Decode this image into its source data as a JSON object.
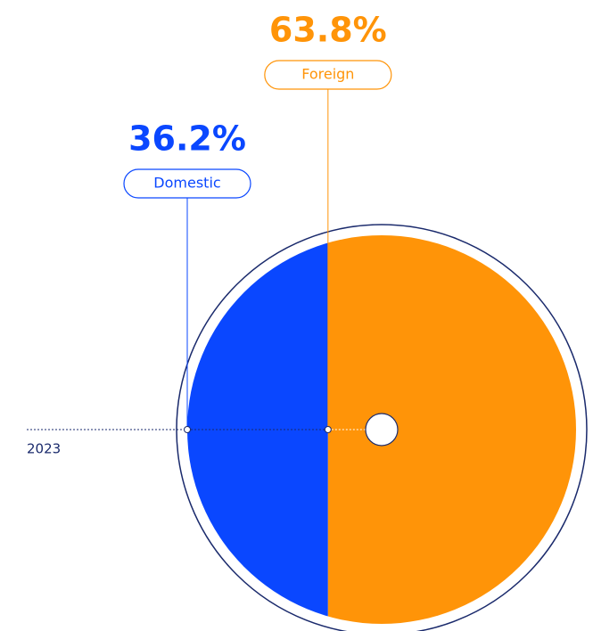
{
  "chart_data": {
    "type": "split-circle",
    "categories": [
      "Domestic",
      "Foreign"
    ],
    "values": [
      36.2,
      63.8
    ],
    "value_labels": [
      "36.2%",
      "63.8%"
    ],
    "colors": [
      "#0a47ff",
      "#ff9408"
    ],
    "year": "2023",
    "total": 100
  }
}
